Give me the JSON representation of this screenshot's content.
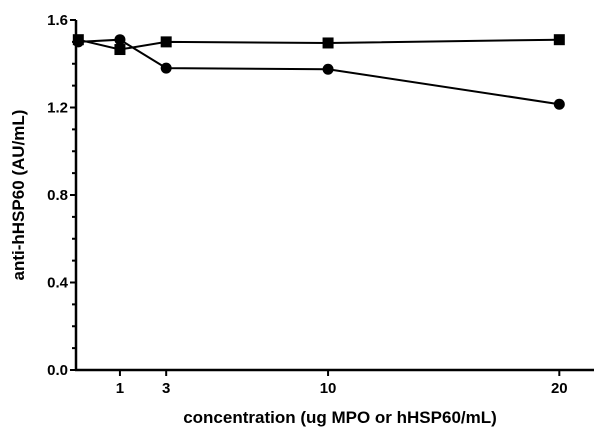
{
  "chart_data": {
    "type": "line",
    "title": "",
    "xlabel": "concentration (ug MPO or hHSP60/mL)",
    "ylabel": "anti-hHSP60 (AU/mL)",
    "xlim": [
      -0.9,
      21.5
    ],
    "ylim": [
      0.0,
      1.6
    ],
    "x_ticks": [
      1,
      3,
      10,
      20
    ],
    "x_tick_labels": [
      "1",
      "3",
      "10",
      "20"
    ],
    "y_ticks": [
      0.0,
      0.4,
      0.8,
      1.2,
      1.6
    ],
    "y_tick_labels": [
      "0.0",
      "0.4",
      "0.8",
      "1.2",
      "1.6"
    ],
    "y_minor_step": 0.1,
    "grid": false,
    "legend": "none",
    "series": [
      {
        "marker": "circle",
        "color": "#000000",
        "x": [
          -0.8,
          1,
          3,
          10,
          20
        ],
        "y": [
          1.5,
          1.51,
          1.38,
          1.375,
          1.215
        ]
      },
      {
        "marker": "square",
        "color": "#000000",
        "x": [
          -0.8,
          1,
          3,
          10,
          20
        ],
        "y": [
          1.51,
          1.465,
          1.5,
          1.495,
          1.51
        ]
      }
    ]
  }
}
